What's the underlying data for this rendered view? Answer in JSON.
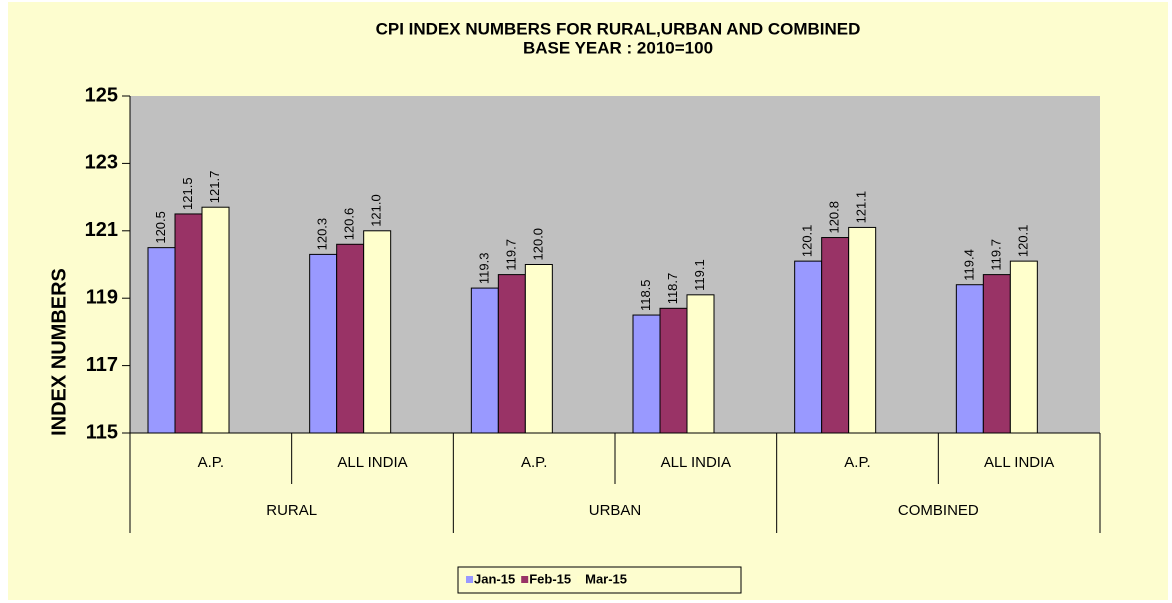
{
  "chart_data": {
    "type": "bar",
    "title": "CPI INDEX NUMBERS FOR  RURAL,URBAN AND COMBINED",
    "subtitle": "BASE YEAR : 2010=100",
    "y_label": "INDEX NUMBERS",
    "categories": [
      "A.P.",
      "ALL INDIA",
      "A.P.",
      "ALL INDIA",
      "A.P.",
      "ALL INDIA"
    ],
    "groups": [
      "RURAL",
      "URBAN",
      "COMBINED"
    ],
    "series": [
      {
        "name": "Jan-15",
        "color": "#9999ff",
        "values": [
          120.5,
          120.3,
          119.3,
          118.5,
          120.1,
          119.4
        ],
        "value_labels": [
          "120.5",
          "120.3",
          "119.3",
          "118.5",
          "120.1",
          "119.4"
        ]
      },
      {
        "name": "Feb-15",
        "color": "#993366",
        "values": [
          121.5,
          120.6,
          119.7,
          118.7,
          120.8,
          119.7
        ],
        "value_labels": [
          "121.5",
          "120.6",
          "119.7",
          "118.7",
          "120.8",
          "119.7"
        ]
      },
      {
        "name": "Mar-15",
        "color": "#ffffcc",
        "values": [
          121.7,
          121.0,
          120.0,
          119.1,
          121.1,
          120.1
        ],
        "value_labels": [
          "121.7",
          "121.0",
          "120.0",
          "119.1",
          "121.1",
          "120.1"
        ]
      }
    ],
    "ylim": [
      115,
      125
    ],
    "yticks": [
      115,
      117,
      119,
      121,
      123,
      125
    ],
    "legend": "bottom"
  }
}
